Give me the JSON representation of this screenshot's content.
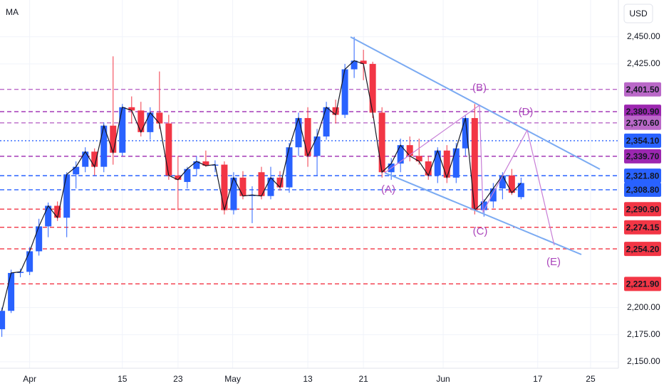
{
  "chart_data": {
    "type": "candlestick",
    "indicator": "MA",
    "currency": "USD",
    "up_color": "#2962ff",
    "down_color": "#f23645",
    "open": [
      2180,
      2197,
      2232,
      2233,
      2252,
      2275,
      2294,
      2283,
      2323,
      2330,
      2344,
      2330,
      2368,
      2343,
      2385,
      2382,
      2362,
      2380,
      2370,
      2322,
      2316,
      2328,
      2335,
      2331,
      2332,
      2290,
      2320,
      2303,
      2325,
      2303,
      2320,
      2311,
      2348,
      2375,
      2340,
      2358,
      2385,
      2378,
      2420,
      2428,
      2425,
      2380,
      2325,
      2333,
      2350,
      2340,
      2335,
      2322,
      2345,
      2320,
      2347,
      2375,
      2290,
      2298,
      2310,
      2322,
      2302
    ],
    "high": [
      2200,
      2235,
      2236,
      2256,
      2282,
      2297,
      2298,
      2325,
      2335,
      2348,
      2347,
      2371,
      2432,
      2388,
      2395,
      2390,
      2385,
      2418,
      2378,
      2340,
      2330,
      2340,
      2345,
      2336,
      2335,
      2325,
      2326,
      2312,
      2330,
      2330,
      2326,
      2352,
      2380,
      2385,
      2365,
      2390,
      2392,
      2425,
      2450,
      2438,
      2427,
      2385,
      2338,
      2356,
      2358,
      2356,
      2340,
      2348,
      2350,
      2352,
      2378,
      2388,
      2300,
      2315,
      2325,
      2328,
      2320
    ],
    "low": [
      2173,
      2195,
      2228,
      2230,
      2248,
      2265,
      2280,
      2265,
      2310,
      2325,
      2322,
      2325,
      2332,
      2340,
      2370,
      2358,
      2355,
      2365,
      2318,
      2290,
      2310,
      2322,
      2330,
      2325,
      2286,
      2286,
      2300,
      2278,
      2300,
      2300,
      2308,
      2306,
      2340,
      2330,
      2322,
      2355,
      2370,
      2375,
      2412,
      2410,
      2375,
      2320,
      2318,
      2325,
      2335,
      2332,
      2318,
      2315,
      2315,
      2315,
      2340,
      2286,
      2284,
      2292,
      2300,
      2304,
      2300
    ],
    "close": [
      2197,
      2232,
      2233,
      2252,
      2275,
      2294,
      2283,
      2323,
      2330,
      2344,
      2330,
      2368,
      2343,
      2385,
      2382,
      2362,
      2380,
      2370,
      2322,
      2318,
      2328,
      2335,
      2331,
      2332,
      2290,
      2320,
      2303,
      2304,
      2303,
      2320,
      2311,
      2348,
      2375,
      2340,
      2358,
      2385,
      2378,
      2420,
      2428,
      2425,
      2380,
      2325,
      2333,
      2350,
      2340,
      2335,
      2322,
      2345,
      2320,
      2347,
      2375,
      2290,
      2298,
      2310,
      2322,
      2306,
      2315
    ],
    "xlim": [
      -0.2,
      66.5
    ],
    "xticks": [
      {
        "value": 3,
        "label": "Apr"
      },
      {
        "value": 13,
        "label": "15"
      },
      {
        "value": 19,
        "label": "23"
      },
      {
        "value": 24.9,
        "label": "May"
      },
      {
        "value": 33,
        "label": "13"
      },
      {
        "value": 39,
        "label": "21"
      },
      {
        "value": 47.6,
        "label": "Jun"
      },
      {
        "value": 57.8,
        "label": "17"
      },
      {
        "value": 63.5,
        "label": "25"
      }
    ],
    "ylim": [
      2144,
      2484
    ],
    "yticks": [
      {
        "value": 2450,
        "label": "2,450.00"
      },
      {
        "value": 2425,
        "label": "2,425.00"
      },
      {
        "value": 2200,
        "label": "2,200.00"
      },
      {
        "value": 2175,
        "label": "2,175.00"
      },
      {
        "value": 2150,
        "label": "2,150.00"
      }
    ],
    "levels": [
      {
        "value": 2401.5,
        "label": "2,401.50",
        "color": "#ba68c8",
        "style": "dashed"
      },
      {
        "value": 2380.9,
        "label": "2,380.90",
        "color": "#9c27b0",
        "style": "dashed"
      },
      {
        "value": 2370.6,
        "label": "2,370.60",
        "color": "#ba68c8",
        "style": "dashed"
      },
      {
        "value": 2354.1,
        "label": "2,354.10",
        "color": "#2962ff",
        "style": "dotted"
      },
      {
        "value": 2339.7,
        "label": "2,339.70",
        "color": "#9c27b0",
        "style": "dashed"
      },
      {
        "value": 2321.8,
        "label": "2,321.80",
        "color": "#2962ff",
        "style": "dashed"
      },
      {
        "value": 2308.8,
        "label": "2,308.80",
        "color": "#2962ff",
        "style": "dashed"
      },
      {
        "value": 2290.9,
        "label": "2,290.90",
        "color": "#f23645",
        "style": "dashed"
      },
      {
        "value": 2274.15,
        "label": "2,274.15",
        "color": "#f23645",
        "style": "dashed"
      },
      {
        "value": 2254.2,
        "label": "2,254.20",
        "color": "#f23645",
        "style": "dashed"
      },
      {
        "value": 2221.9,
        "label": "2,221.90",
        "color": "#f23645",
        "style": "dashed"
      }
    ],
    "annotations": [
      "(A)",
      "(B)",
      "(C)",
      "(D)",
      "(E)"
    ]
  }
}
